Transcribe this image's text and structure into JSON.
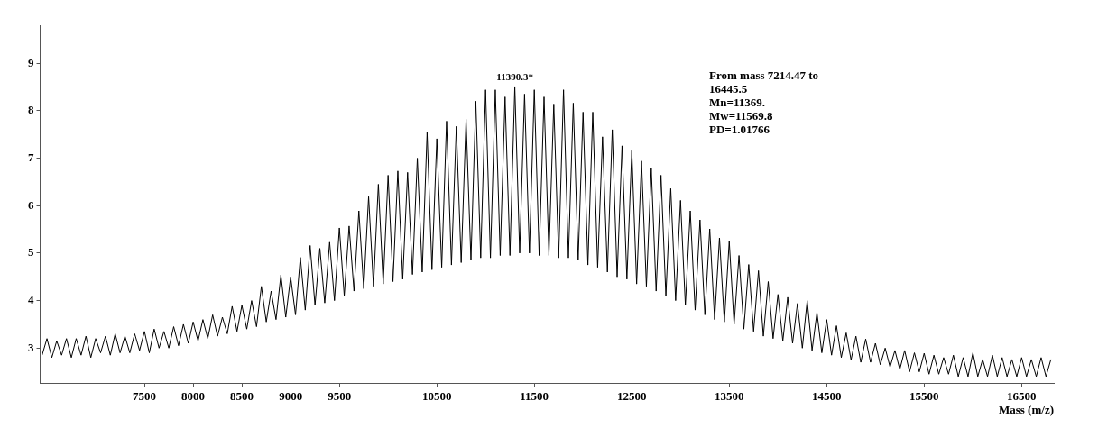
{
  "chart_data": {
    "type": "line",
    "xlabel": "Mass (m/z)",
    "xlim": [
      6430,
      16830
    ],
    "xticks": [
      7500,
      8000,
      8500,
      9000,
      9500,
      10500,
      11500,
      12500,
      13500,
      14500,
      15500,
      16500
    ],
    "ylim": [
      2.25,
      9.8
    ],
    "yticks": [
      3,
      4,
      5,
      6,
      7,
      8,
      9
    ],
    "grid": false,
    "legend": false,
    "marker": "none",
    "line_style": "solid",
    "annotations": [
      {
        "text": "11390.3*",
        "x": 11300,
        "y": 8.51
      },
      "From mass 7214.47 to 16445.5",
      "Mn=11369.",
      "Mw=11569.8",
      "PD=1.01766"
    ],
    "series": [
      {
        "color": "#000000",
        "x": [
          6450,
          6500,
          6550,
          6600,
          6650,
          6700,
          6750,
          6800,
          6850,
          6900,
          6950,
          7000,
          7050,
          7100,
          7150,
          7200,
          7250,
          7300,
          7350,
          7400,
          7450,
          7500,
          7550,
          7600,
          7650,
          7700,
          7750,
          7800,
          7850,
          7900,
          7950,
          8000,
          8050,
          8100,
          8150,
          8200,
          8250,
          8300,
          8350,
          8400,
          8450,
          8500,
          8550,
          8600,
          8650,
          8700,
          8750,
          8800,
          8850,
          8900,
          8950,
          9000,
          9050,
          9100,
          9150,
          9200,
          9250,
          9300,
          9350,
          9400,
          9450,
          9500,
          9550,
          9600,
          9650,
          9700,
          9750,
          9800,
          9850,
          9900,
          9950,
          10000,
          10050,
          10100,
          10150,
          10200,
          10250,
          10300,
          10350,
          10400,
          10450,
          10500,
          10550,
          10600,
          10650,
          10700,
          10750,
          10800,
          10850,
          10900,
          10950,
          11000,
          11050,
          11100,
          11150,
          11200,
          11250,
          11300,
          11350,
          11400,
          11450,
          11500,
          11550,
          11600,
          11650,
          11700,
          11750,
          11800,
          11850,
          11900,
          11950,
          12000,
          12050,
          12100,
          12150,
          12200,
          12250,
          12300,
          12350,
          12400,
          12450,
          12500,
          12550,
          12600,
          12650,
          12700,
          12750,
          12800,
          12850,
          12900,
          12950,
          13000,
          13050,
          13100,
          13150,
          13200,
          13250,
          13300,
          13350,
          13400,
          13450,
          13500,
          13550,
          13600,
          13650,
          13700,
          13750,
          13800,
          13850,
          13900,
          13950,
          14000,
          14050,
          14100,
          14150,
          14200,
          14250,
          14300,
          14350,
          14400,
          14450,
          14500,
          14550,
          14600,
          14650,
          14700,
          14750,
          14800,
          14850,
          14900,
          14950,
          15000,
          15050,
          15100,
          15150,
          15200,
          15250,
          15300,
          15350,
          15400,
          15450,
          15500,
          15550,
          15600,
          15650,
          15700,
          15750,
          15800,
          15850,
          15900,
          15950,
          16000,
          16050,
          16100,
          16150,
          16200,
          16250,
          16300,
          16350,
          16400,
          16450,
          16500,
          16550,
          16600,
          16650,
          16700,
          16750,
          16800
        ],
        "values": [
          2.85,
          3.2,
          2.8,
          3.15,
          2.85,
          3.2,
          2.8,
          3.2,
          2.85,
          3.25,
          2.8,
          3.2,
          2.9,
          3.25,
          2.85,
          3.3,
          2.9,
          3.25,
          2.9,
          3.3,
          2.95,
          3.35,
          2.9,
          3.4,
          3.0,
          3.35,
          3.0,
          3.45,
          3.05,
          3.5,
          3.1,
          3.55,
          3.15,
          3.6,
          3.2,
          3.7,
          3.25,
          3.65,
          3.3,
          3.88,
          3.35,
          3.9,
          3.4,
          4.0,
          3.45,
          4.3,
          3.55,
          4.2,
          3.6,
          4.54,
          3.65,
          4.5,
          3.7,
          4.91,
          3.8,
          5.16,
          3.9,
          5.1,
          3.95,
          5.23,
          4.0,
          5.53,
          4.1,
          5.57,
          4.2,
          5.89,
          4.25,
          6.19,
          4.3,
          6.45,
          4.35,
          6.64,
          4.4,
          6.73,
          4.45,
          6.7,
          4.55,
          7.0,
          4.6,
          7.54,
          4.65,
          7.41,
          4.7,
          7.78,
          4.75,
          7.67,
          4.8,
          7.82,
          4.85,
          8.2,
          4.9,
          8.44,
          4.9,
          8.44,
          4.95,
          8.29,
          4.95,
          8.51,
          5.0,
          8.35,
          5.0,
          8.44,
          4.95,
          8.29,
          4.95,
          8.14,
          4.9,
          8.44,
          4.9,
          8.16,
          4.85,
          7.97,
          4.75,
          7.97,
          4.7,
          7.45,
          4.6,
          7.6,
          4.5,
          7.26,
          4.45,
          7.16,
          4.35,
          6.94,
          4.3,
          6.79,
          4.2,
          6.64,
          4.1,
          6.36,
          4.0,
          6.11,
          3.9,
          5.89,
          3.8,
          5.7,
          3.7,
          5.51,
          3.6,
          5.32,
          3.55,
          5.25,
          3.5,
          4.95,
          3.4,
          4.76,
          3.35,
          4.63,
          3.25,
          4.4,
          3.2,
          4.13,
          3.15,
          4.07,
          3.1,
          3.94,
          3.0,
          4.0,
          2.95,
          3.75,
          2.9,
          3.6,
          2.85,
          3.47,
          2.8,
          3.32,
          2.75,
          3.25,
          2.7,
          3.19,
          2.7,
          3.1,
          2.65,
          3.0,
          2.6,
          2.95,
          2.55,
          2.95,
          2.5,
          2.9,
          2.5,
          2.89,
          2.45,
          2.85,
          2.45,
          2.8,
          2.45,
          2.85,
          2.4,
          2.8,
          2.4,
          2.9,
          2.4,
          2.76,
          2.4,
          2.85,
          2.4,
          2.8,
          2.4,
          2.76,
          2.4,
          2.8,
          2.4,
          2.76,
          2.4,
          2.8,
          2.4,
          2.76
        ]
      }
    ]
  }
}
